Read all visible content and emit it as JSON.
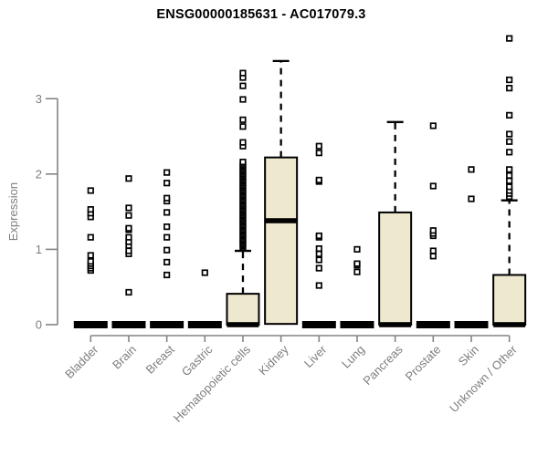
{
  "chart_data": {
    "type": "boxplot",
    "title": "ENSG00000185631 - AC017079.3",
    "ylabel": "Expression",
    "xlabel": "",
    "yticks": [
      0,
      1,
      2,
      3
    ],
    "ylim": [
      0,
      3.85
    ],
    "grid": false,
    "legend": null,
    "categories": [
      "Bladder",
      "Brain",
      "Breast",
      "Gastric",
      "Hematopoietic cells",
      "Kidney",
      "Liver",
      "Lung",
      "Pancreas",
      "Prostate",
      "Skin",
      "Unknown / Other"
    ],
    "series": [
      {
        "name": "Bladder",
        "q1": 0,
        "median": 0,
        "q3": 0,
        "whisker_low": 0,
        "whisker_high": 0,
        "outliers": [
          0.72,
          0.75,
          0.78,
          0.81,
          0.84,
          0.92,
          1.16,
          1.43,
          1.48,
          1.53,
          1.78
        ]
      },
      {
        "name": "Brain",
        "q1": 0,
        "median": 0,
        "q3": 0,
        "whisker_low": 0,
        "whisker_high": 0,
        "outliers": [
          0.43,
          0.94,
          0.98,
          1.05,
          1.1,
          1.16,
          1.26,
          1.28,
          1.45,
          1.55,
          1.94
        ]
      },
      {
        "name": "Breast",
        "q1": 0,
        "median": 0,
        "q3": 0,
        "whisker_low": 0,
        "whisker_high": 0,
        "outliers": [
          0.66,
          0.83,
          0.99,
          1.16,
          1.3,
          1.49,
          1.64,
          1.68,
          1.88,
          2.02
        ]
      },
      {
        "name": "Gastric",
        "q1": 0,
        "median": 0,
        "q3": 0,
        "whisker_low": 0,
        "whisker_high": 0,
        "outliers": [
          0.69
        ]
      },
      {
        "name": "Hematopoietic cells",
        "q1": 0,
        "median": 0,
        "q3": 0.41,
        "whisker_low": 0,
        "whisker_high": 0.98,
        "outliers": [
          1.02,
          1.04,
          1.06,
          1.08,
          1.1,
          1.12,
          1.14,
          1.16,
          1.18,
          1.2,
          1.22,
          1.24,
          1.26,
          1.28,
          1.3,
          1.32,
          1.34,
          1.36,
          1.38,
          1.4,
          1.42,
          1.44,
          1.46,
          1.48,
          1.5,
          1.52,
          1.54,
          1.56,
          1.58,
          1.6,
          1.62,
          1.64,
          1.66,
          1.68,
          1.7,
          1.72,
          1.74,
          1.76,
          1.78,
          1.8,
          1.82,
          1.84,
          1.86,
          1.88,
          1.9,
          1.92,
          1.94,
          1.96,
          1.98,
          2.0,
          2.02,
          2.04,
          2.06,
          2.08,
          2.1,
          2.12,
          2.14,
          2.16,
          2.37,
          2.42,
          2.63,
          2.72,
          2.99,
          3.17,
          3.28,
          3.34
        ]
      },
      {
        "name": "Kidney",
        "q1": 0.01,
        "median": 1.38,
        "q3": 2.22,
        "whisker_low": 0,
        "whisker_high": 3.5,
        "outliers": []
      },
      {
        "name": "Liver",
        "q1": 0,
        "median": 0,
        "q3": 0,
        "whisker_low": 0,
        "whisker_high": 0,
        "outliers": [
          0.52,
          0.75,
          0.86,
          0.94,
          1.01,
          1.16,
          1.18,
          1.9,
          1.92,
          2.28,
          2.37
        ]
      },
      {
        "name": "Lung",
        "q1": 0,
        "median": 0,
        "q3": 0,
        "whisker_low": 0,
        "whisker_high": 0,
        "outliers": [
          0.7,
          0.79,
          0.81,
          1.0
        ]
      },
      {
        "name": "Pancreas",
        "q1": 0,
        "median": 0,
        "q3": 1.49,
        "whisker_low": 0,
        "whisker_high": 2.69,
        "outliers": []
      },
      {
        "name": "Prostate",
        "q1": 0,
        "median": 0,
        "q3": 0,
        "whisker_low": 0,
        "whisker_high": 0,
        "outliers": [
          0.91,
          0.98,
          1.18,
          1.21,
          1.25,
          1.84,
          2.64
        ]
      },
      {
        "name": "Skin",
        "q1": 0,
        "median": 0,
        "q3": 0,
        "whisker_low": 0,
        "whisker_high": 0,
        "outliers": [
          1.67,
          2.06
        ]
      },
      {
        "name": "Unknown / Other",
        "q1": 0,
        "median": 0,
        "q3": 0.66,
        "whisker_low": 0,
        "whisker_high": 1.65,
        "outliers": [
          1.7,
          1.74,
          1.78,
          1.83,
          1.91,
          1.98,
          2.06,
          2.29,
          2.43,
          2.53,
          2.78,
          3.14,
          3.25,
          3.8
        ]
      }
    ],
    "colors": {
      "box_fill": "#EDE8CE",
      "box_stroke": "#000000",
      "median": "#000000",
      "whisker": "#000000",
      "outlier_fill": "#ffffff",
      "outlier_stroke": "#000000",
      "axis": "#848484",
      "tick_label": "#7e7e7e",
      "title": "#000000",
      "background": "#ffffff"
    }
  }
}
